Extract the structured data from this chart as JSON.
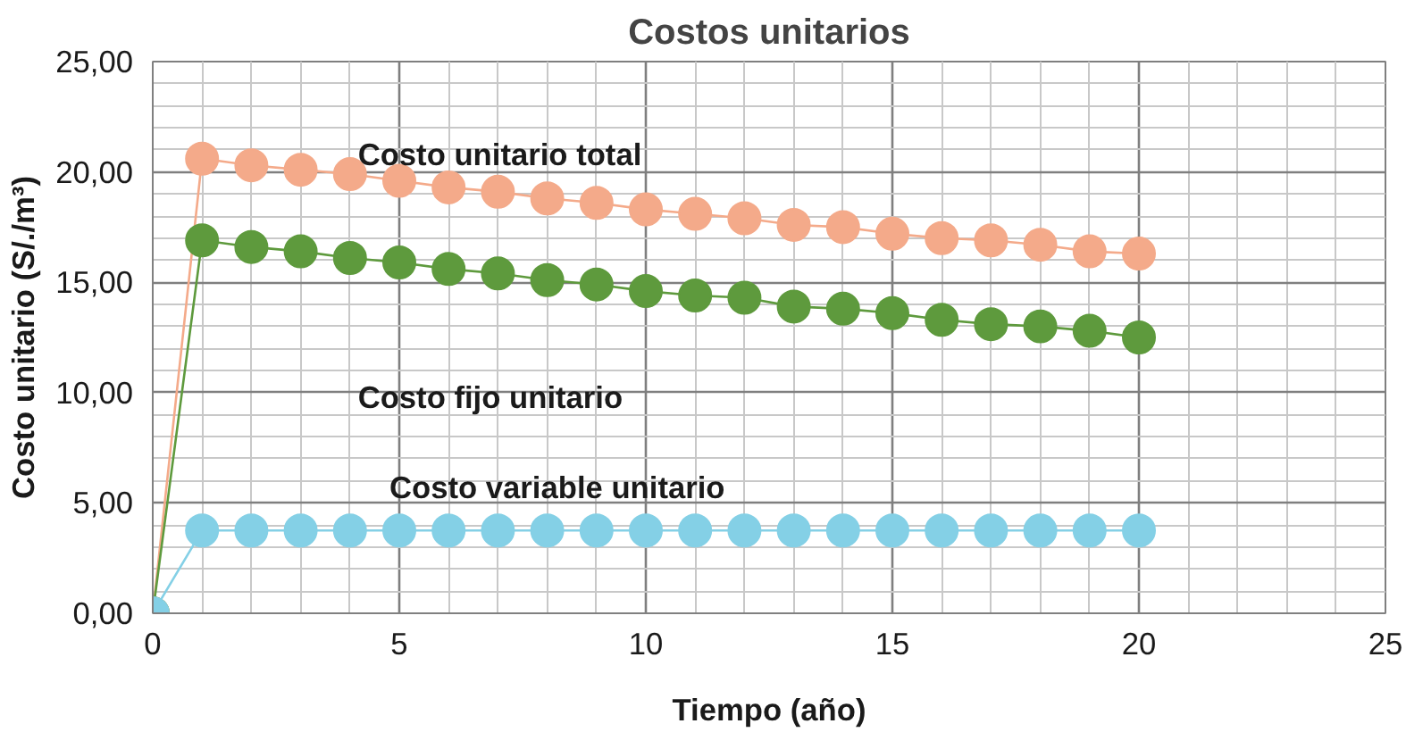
{
  "chart_data": {
    "type": "line",
    "title": "Costos unitarios",
    "xlabel": "Tiempo (año)",
    "ylabel": "Costo unitario (S/./m³)",
    "x": [
      0,
      1,
      2,
      3,
      4,
      5,
      6,
      7,
      8,
      9,
      10,
      11,
      12,
      13,
      14,
      15,
      16,
      17,
      18,
      19,
      20
    ],
    "series": [
      {
        "name": "Costo unitario total",
        "color": "#f4aa8a",
        "values": [
          0,
          20.6,
          20.3,
          20.1,
          19.9,
          19.6,
          19.3,
          19.1,
          18.8,
          18.6,
          18.3,
          18.1,
          17.9,
          17.6,
          17.5,
          17.2,
          17.0,
          16.9,
          16.7,
          16.4,
          16.3
        ]
      },
      {
        "name": "Costo fijo unitario",
        "color": "#5e9a3d",
        "values": [
          0,
          16.9,
          16.6,
          16.4,
          16.1,
          15.9,
          15.6,
          15.4,
          15.1,
          14.9,
          14.6,
          14.4,
          14.3,
          13.9,
          13.8,
          13.6,
          13.3,
          13.1,
          13.0,
          12.8,
          12.5
        ]
      },
      {
        "name": "Costo variable unitario",
        "color": "#84d0e6",
        "values": [
          0,
          3.75,
          3.75,
          3.75,
          3.75,
          3.75,
          3.75,
          3.75,
          3.75,
          3.75,
          3.75,
          3.75,
          3.75,
          3.75,
          3.75,
          3.75,
          3.75,
          3.75,
          3.75,
          3.75,
          3.75
        ]
      }
    ],
    "xlim": [
      0,
      25
    ],
    "ylim": [
      0,
      25
    ],
    "xticks": [
      0,
      5,
      10,
      15,
      20,
      25
    ],
    "yticks": [
      {
        "value": 0,
        "label": "0,00"
      },
      {
        "value": 5,
        "label": "5,00"
      },
      {
        "value": 10,
        "label": "10,00"
      },
      {
        "value": 15,
        "label": "15,00"
      },
      {
        "value": 20,
        "label": "20,00"
      },
      {
        "value": 25,
        "label": "25,00"
      }
    ],
    "grid": true,
    "legend": false,
    "marker": "circle",
    "line_style": "solid"
  }
}
